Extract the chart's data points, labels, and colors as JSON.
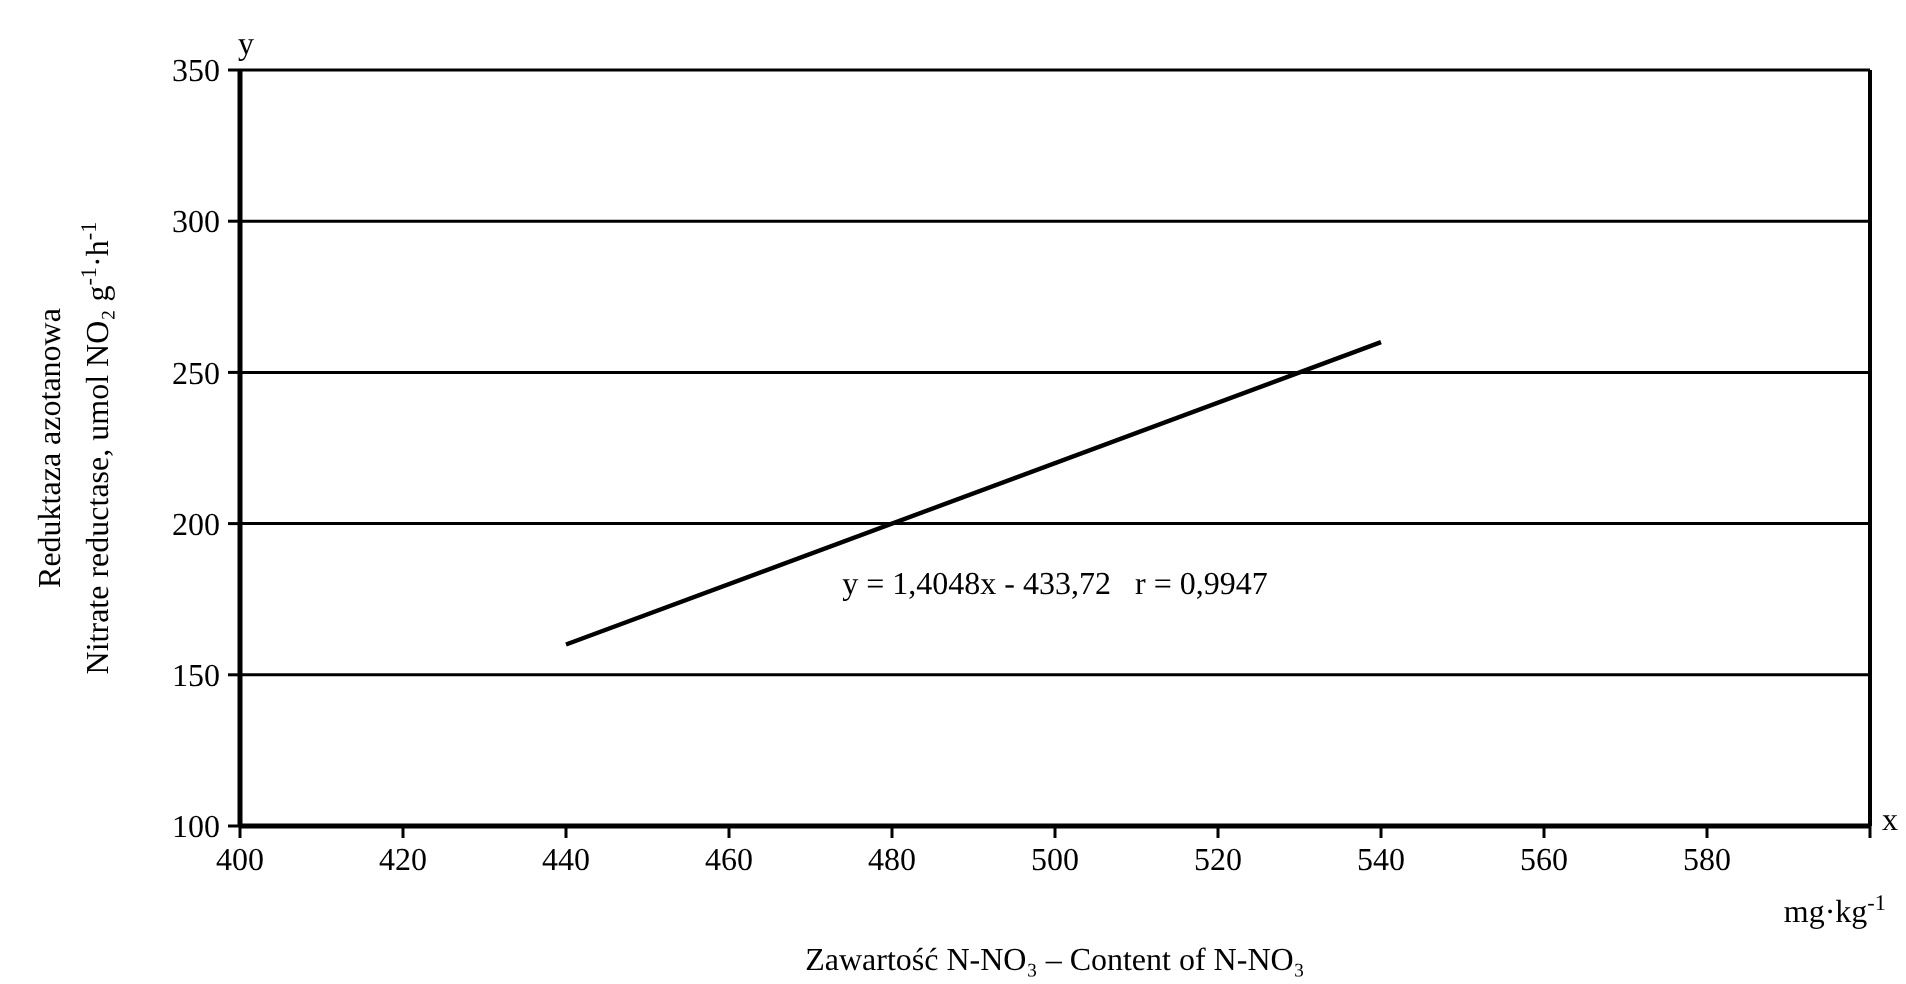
{
  "chart_data": {
    "type": "line",
    "xlabel": "Zawartość N-NO₃ – Content of N-NO₃",
    "ylabel": "Reduktaza azotanowa\nNitrate reductase, umol NO₂ g$^{-1}$·h$^{-1}$",
    "annotations": [
      "y",
      "x",
      "mg·kg$^{-1}$",
      "y = 1,4048x - 433,72   r = 0,9947"
    ],
    "series": [
      {
        "color": "#000000",
        "x": [
          440,
          540
        ],
        "values": [
          160,
          260
        ]
      }
    ],
    "xlim": [
      400,
      600
    ],
    "xticks": [
      400,
      420,
      440,
      460,
      480,
      500,
      520,
      540,
      560,
      580,
      {
        "value": 600,
        "label": null
      }
    ],
    "ylim": [
      100,
      350
    ],
    "yticks": [
      100,
      150,
      200,
      250,
      300,
      350
    ],
    "grid": "y",
    "marker": "none",
    "line_style": "solid"
  }
}
